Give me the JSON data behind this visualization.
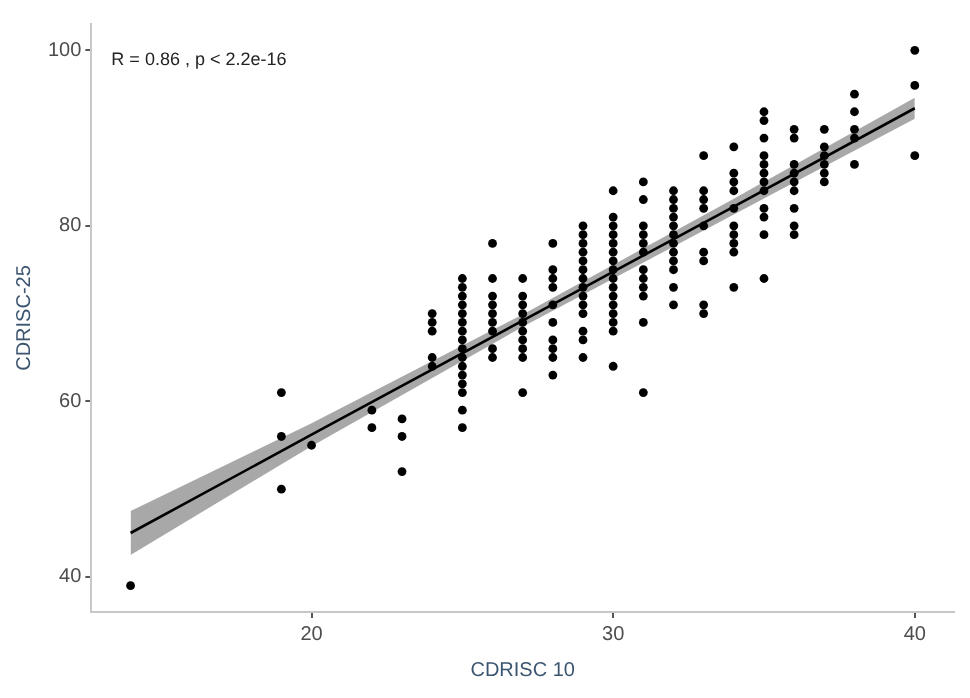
{
  "chart_data": {
    "type": "scatter",
    "xlabel": "CDRISC 10",
    "ylabel": "CDRISC-25",
    "annotations": [
      "R = 0.86 , p < 2.2e-16"
    ],
    "xlim": [
      12.7,
      41.3
    ],
    "ylim": [
      36,
      103
    ],
    "xticks": [
      20,
      30,
      40
    ],
    "yticks": [
      40,
      60,
      80,
      100
    ],
    "grid": false,
    "legend": false,
    "series": [
      {
        "color": "#000000",
        "marker": "circle",
        "x": [
          14,
          19,
          19,
          19,
          20,
          22,
          22,
          23,
          23,
          23,
          24,
          24,
          24,
          24,
          24,
          25,
          25,
          25,
          25,
          25,
          25,
          25,
          25,
          25,
          25,
          25,
          25,
          25,
          25,
          25,
          25,
          26,
          26,
          26,
          26,
          26,
          26,
          26,
          26,
          26,
          27,
          27,
          27,
          27,
          27,
          27,
          27,
          27,
          27,
          27,
          28,
          28,
          28,
          28,
          28,
          28,
          28,
          28,
          28,
          28,
          29,
          29,
          29,
          29,
          29,
          29,
          29,
          29,
          29,
          29,
          29,
          29,
          29,
          29,
          30,
          30,
          30,
          30,
          30,
          30,
          30,
          30,
          30,
          30,
          30,
          30,
          30,
          30,
          30,
          30,
          31,
          31,
          31,
          31,
          31,
          31,
          31,
          31,
          31,
          31,
          31,
          31,
          32,
          32,
          32,
          32,
          32,
          32,
          32,
          32,
          32,
          32,
          32,
          32,
          33,
          33,
          33,
          33,
          33,
          33,
          33,
          33,
          33,
          34,
          34,
          34,
          34,
          34,
          34,
          34,
          34,
          34,
          34,
          35,
          35,
          35,
          35,
          35,
          35,
          35,
          35,
          35,
          35,
          35,
          35,
          36,
          36,
          36,
          36,
          36,
          36,
          36,
          36,
          36,
          37,
          37,
          37,
          37,
          37,
          37,
          38,
          38,
          38,
          38,
          38,
          40,
          40,
          40
        ],
        "values": [
          39,
          61,
          56,
          50,
          55,
          59,
          57,
          58,
          56,
          52,
          70,
          69,
          68,
          65,
          64,
          74,
          73,
          72,
          71,
          70,
          69,
          68,
          67,
          66,
          65,
          64,
          63,
          62,
          61,
          59,
          57,
          78,
          74,
          72,
          71,
          70,
          69,
          68,
          66,
          65,
          74,
          72,
          71,
          70,
          69,
          68,
          67,
          66,
          65,
          61,
          78,
          75,
          74,
          73,
          71,
          69,
          67,
          66,
          65,
          63,
          80,
          79,
          78,
          77,
          76,
          75,
          74,
          73,
          72,
          71,
          70,
          68,
          67,
          65,
          84,
          81,
          80,
          79,
          78,
          77,
          76,
          75,
          74,
          73,
          72,
          71,
          70,
          69,
          68,
          64,
          85,
          83,
          80,
          79,
          78,
          77,
          75,
          74,
          73,
          72,
          69,
          61,
          84,
          83,
          82,
          81,
          80,
          79,
          78,
          77,
          76,
          75,
          73,
          71,
          88,
          84,
          83,
          82,
          80,
          77,
          76,
          71,
          70,
          89,
          86,
          85,
          84,
          82,
          80,
          79,
          78,
          77,
          73,
          93,
          92,
          90,
          88,
          87,
          86,
          85,
          84,
          82,
          81,
          79,
          74,
          91,
          90,
          87,
          86,
          85,
          84,
          82,
          80,
          79,
          91,
          89,
          88,
          87,
          86,
          85,
          95,
          93,
          91,
          90,
          87,
          100,
          96,
          88
        ]
      },
      {
        "type": "line",
        "color": "#000000",
        "marker": "none",
        "x": [
          14,
          20,
          27,
          34,
          40
        ],
        "values": [
          45,
          56.2,
          69.2,
          82.2,
          93.4
        ],
        "lower": [
          42.5,
          54.9,
          68.5,
          81.3,
          92.2
        ],
        "upper": [
          47.5,
          57.5,
          69.9,
          83.1,
          94.6
        ]
      }
    ]
  }
}
